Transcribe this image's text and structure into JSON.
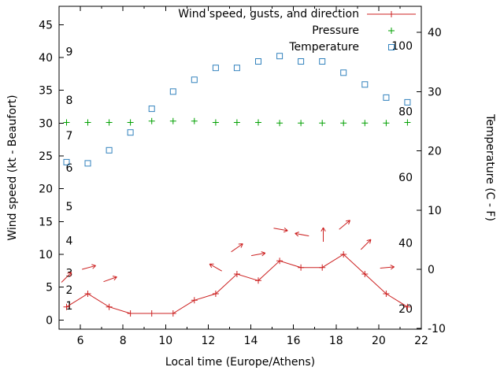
{
  "background": "#ffffff",
  "chart_data": {
    "type": "line",
    "title": "",
    "xlabel": "Local time (Europe/Athens)",
    "ylabel_left": "Wind speed (kt - Beaufort)",
    "ylabel_right": "Temperature (C - F)",
    "grid": false,
    "legend_position": "top-right-inside",
    "x_range": [
      5,
      22
    ],
    "x_ticks": [
      6,
      8,
      10,
      12,
      14,
      16,
      18,
      20,
      22
    ],
    "x_minor_ticks": [
      7,
      9,
      11,
      13,
      15,
      17,
      19,
      21
    ],
    "left_axis": {
      "ticks": [
        0,
        5,
        10,
        15,
        20,
        25,
        30,
        35,
        40,
        45
      ],
      "range": [
        -1.4,
        47.8
      ]
    },
    "right_axis": {
      "ticks": [
        -10,
        0,
        10,
        20,
        30,
        40
      ],
      "range": [
        -10.1,
        44.4
      ]
    },
    "beaufort_labels": [
      {
        "label": "1",
        "kt": 2.2
      },
      {
        "label": "2",
        "kt": 4.6
      },
      {
        "label": "3",
        "kt": 7.2
      },
      {
        "label": "4",
        "kt": 12.1
      },
      {
        "label": "5",
        "kt": 17.3
      },
      {
        "label": "6",
        "kt": 23.2
      },
      {
        "label": "7",
        "kt": 28.1
      },
      {
        "label": "8",
        "kt": 33.5
      },
      {
        "label": "9",
        "kt": 40.9
      }
    ],
    "fahrenheit_labels": [
      {
        "label": "20",
        "f": 20
      },
      {
        "label": "40",
        "f": 40
      },
      {
        "label": "60",
        "f": 60
      },
      {
        "label": "80",
        "f": 80
      },
      {
        "label": "100",
        "f": 100
      }
    ],
    "legend": [
      {
        "label": "Wind speed, gusts, and direction",
        "marker": "line-plus",
        "color": "#cc2020"
      },
      {
        "label": "Pressure",
        "marker": "plus",
        "color": "#00a000"
      },
      {
        "label": "Temperature",
        "marker": "square",
        "color": "#3282bd"
      }
    ],
    "series": {
      "x": [
        5.35,
        6.35,
        7.35,
        8.35,
        9.35,
        10.35,
        11.35,
        12.35,
        13.35,
        14.35,
        15.35,
        16.35,
        17.35,
        18.35,
        19.35,
        20.35,
        21.35
      ],
      "wind_kt": [
        2,
        4,
        2,
        1,
        1,
        1,
        3,
        4,
        7,
        6,
        9,
        8,
        8,
        10,
        7,
        4,
        2
      ],
      "pressure": [
        30.1,
        30.1,
        30.1,
        30.1,
        30.3,
        30.3,
        30.3,
        30.1,
        30.1,
        30.1,
        30.0,
        30.0,
        30.0,
        30.0,
        30.0,
        30.0,
        30.1
      ],
      "temperature_c": [
        18.1,
        17.9,
        20.1,
        23.1,
        27.1,
        30.0,
        32.0,
        34.0,
        34.0,
        35.1,
        36.0,
        35.1,
        35.1,
        33.2,
        31.2,
        29.0,
        28.2
      ],
      "gusts": [
        {
          "x": 5.35,
          "kt": 6.5,
          "angle_deg": 45
        },
        {
          "x": 6.4,
          "kt": 8.0,
          "angle_deg": 15
        },
        {
          "x": 7.4,
          "kt": 6.2,
          "angle_deg": 20
        },
        {
          "x": 12.35,
          "kt": 8.0,
          "angle_deg": 150
        },
        {
          "x": 13.35,
          "kt": 11.0,
          "angle_deg": 35
        },
        {
          "x": 14.35,
          "kt": 10.0,
          "angle_deg": 10
        },
        {
          "x": 15.4,
          "kt": 13.8,
          "angle_deg": -10
        },
        {
          "x": 16.4,
          "kt": 13.0,
          "angle_deg": 170
        },
        {
          "x": 17.4,
          "kt": 13.0,
          "angle_deg": 90
        },
        {
          "x": 18.4,
          "kt": 14.5,
          "angle_deg": 40
        },
        {
          "x": 19.4,
          "kt": 11.5,
          "angle_deg": 45
        },
        {
          "x": 20.4,
          "kt": 8.0,
          "angle_deg": 5
        }
      ]
    }
  }
}
